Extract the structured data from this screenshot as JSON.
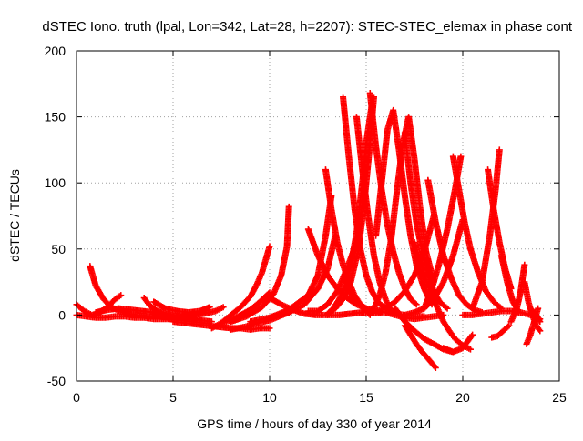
{
  "chart_data": {
    "type": "scatter",
    "title": "dSTEC Iono. truth (lpal, Lon=342, Lat=28, h=2207): STEC-STEC_elemax in phase cont",
    "xlabel": "GPS time / hours of day 330 of year 2014",
    "ylabel": "dSTEC  / TECUs",
    "xlim": [
      0,
      25
    ],
    "ylim": [
      -50,
      200
    ],
    "xticks": [
      "0",
      "5",
      "10",
      "15",
      "20",
      "25"
    ],
    "yticks": [
      "-50",
      "0",
      "50",
      "100",
      "150",
      "200"
    ],
    "grid": true,
    "grid_style": "dotted",
    "marker": "plus",
    "color": "#ff0000",
    "series": [
      {
        "x": [
          0.0,
          0.4,
          0.8,
          1.2,
          1.6,
          2.0,
          2.3
        ],
        "y": [
          8,
          3,
          0,
          2,
          6,
          12,
          15
        ]
      },
      {
        "x": [
          0.0,
          0.5,
          1.0,
          1.5,
          2.0,
          2.5,
          3.0,
          3.5,
          4.0,
          4.5,
          5.0
        ],
        "y": [
          0,
          -1,
          -2,
          -2,
          -1,
          -1,
          -2,
          -2,
          -3,
          -3,
          -3
        ]
      },
      {
        "x": [
          0.7,
          1.0,
          1.4,
          1.8,
          2.2,
          2.7,
          3.2,
          3.7,
          4.2,
          4.7,
          5.2,
          5.7,
          6.2
        ],
        "y": [
          37,
          22,
          12,
          6,
          3,
          1,
          0,
          -1,
          -1,
          -2,
          -2,
          -2,
          -3
        ]
      },
      {
        "x": [
          1.0,
          1.6,
          2.2,
          2.8,
          3.4,
          4.0,
          4.6,
          5.2,
          5.8,
          6.4,
          7.0
        ],
        "y": [
          2,
          4,
          5,
          4,
          3,
          2,
          0,
          -2,
          -3,
          -4,
          -5
        ]
      },
      {
        "x": [
          3.5,
          3.8,
          4.2,
          4.8,
          5.4,
          6.0,
          6.6,
          7.2,
          7.6
        ],
        "y": [
          13,
          7,
          3,
          0,
          -1,
          0,
          1,
          3,
          6
        ]
      },
      {
        "x": [
          4.0,
          4.6,
          5.2,
          5.8,
          6.4,
          6.9
        ],
        "y": [
          10,
          5,
          3,
          2,
          3,
          6
        ]
      },
      {
        "x": [
          5.0,
          5.6,
          6.2,
          6.8,
          7.4,
          8.0,
          8.5,
          9.0,
          9.5,
          10.0
        ],
        "y": [
          -5,
          -6,
          -7,
          -8,
          -9,
          -10,
          -10,
          -11,
          -10,
          -10
        ]
      },
      {
        "x": [
          7.0,
          7.5,
          8.0,
          8.5,
          9.0,
          9.3,
          9.6,
          9.8,
          10.0
        ],
        "y": [
          -10,
          -6,
          0,
          6,
          14,
          22,
          32,
          42,
          52
        ]
      },
      {
        "x": [
          7.5,
          8.0,
          8.5,
          9.0,
          9.5,
          10.0
        ],
        "y": [
          -6,
          -4,
          0,
          4,
          10,
          17
        ]
      },
      {
        "x": [
          8.0,
          8.8,
          9.6,
          10.2,
          10.6,
          10.9,
          11.0
        ],
        "y": [
          -5,
          -1,
          6,
          16,
          30,
          52,
          82
        ]
      },
      {
        "x": [
          8.0,
          8.7,
          9.4,
          10.0,
          10.5,
          11.0
        ],
        "y": [
          -11,
          -9,
          -6,
          -4,
          -1,
          2
        ]
      },
      {
        "x": [
          9.0,
          10.0,
          11.0,
          12.0,
          12.5,
          12.9,
          13.2
        ],
        "y": [
          -5,
          -2,
          4,
          15,
          30,
          60,
          90
        ]
      },
      {
        "x": [
          10.0,
          10.6,
          11.2,
          11.8,
          12.4,
          13.0,
          13.6,
          14.2,
          14.8,
          15.4,
          15.8
        ],
        "y": [
          13,
          8,
          4,
          1,
          0,
          0,
          0,
          1,
          2,
          2,
          2
        ]
      },
      {
        "x": [
          10.0,
          11.0,
          11.8,
          12.5,
          13.0,
          13.4
        ],
        "y": [
          -2,
          2,
          8,
          20,
          35,
          60
        ]
      },
      {
        "x": [
          12.0,
          12.5,
          13.0,
          13.5,
          14.0,
          14.5,
          15.0,
          15.5,
          16.0,
          16.5,
          17.0,
          17.5,
          18.0
        ],
        "y": [
          65,
          45,
          30,
          20,
          13,
          8,
          5,
          3,
          2,
          1,
          0,
          -1,
          -1
        ]
      },
      {
        "x": [
          12.0,
          12.5,
          13.0,
          13.5,
          14.0,
          14.5
        ],
        "y": [
          3,
          3,
          8,
          18,
          35,
          55
        ]
      },
      {
        "x": [
          12.9,
          13.2,
          13.5,
          13.8,
          14.1,
          14.4,
          14.7,
          15.0,
          15.2
        ],
        "y": [
          110,
          80,
          55,
          38,
          25,
          15,
          8,
          3,
          0
        ]
      },
      {
        "x": [
          13.0,
          13.3,
          13.6,
          13.9,
          14.2,
          14.5,
          14.8,
          15.0,
          15.3
        ],
        "y": [
          1,
          5,
          12,
          22,
          38,
          62,
          100,
          130,
          160
        ]
      },
      {
        "x": [
          13.0,
          13.4,
          13.8,
          14.2,
          14.6,
          14.9,
          15.2,
          15.4
        ],
        "y": [
          0,
          5,
          12,
          25,
          50,
          85,
          130,
          165
        ]
      },
      {
        "x": [
          13.8,
          14.1,
          14.4,
          14.7,
          15.0,
          15.3,
          15.6,
          16.0,
          16.4
        ],
        "y": [
          165,
          120,
          80,
          50,
          30,
          18,
          10,
          5,
          3
        ]
      },
      {
        "x": [
          14.5,
          14.8,
          15.1,
          15.4,
          15.7,
          16.0,
          16.2
        ],
        "y": [
          150,
          110,
          75,
          45,
          25,
          12,
          5
        ]
      },
      {
        "x": [
          14.0,
          14.5,
          15.0,
          15.5,
          16.0,
          16.5,
          17.0,
          17.5,
          18.0,
          18.5
        ],
        "y": [
          20,
          10,
          5,
          3,
          5,
          10,
          18,
          30,
          48,
          75
        ]
      },
      {
        "x": [
          15.2,
          15.5,
          15.8,
          16.1,
          16.4,
          16.7,
          17.0,
          17.3,
          17.6
        ],
        "y": [
          168,
          128,
          95,
          68,
          48,
          32,
          20,
          12,
          8
        ]
      },
      {
        "x": [
          15.4,
          15.7,
          16.0,
          16.3,
          16.6,
          16.9,
          17.2,
          17.5,
          17.8,
          18.1,
          18.5
        ],
        "y": [
          5,
          15,
          32,
          58,
          95,
          130,
          150,
          118,
          80,
          48,
          25
        ]
      },
      {
        "x": [
          15.5,
          15.8,
          16.1,
          16.4,
          16.7,
          17.0,
          17.3,
          17.6,
          18.0,
          18.4
        ],
        "y": [
          60,
          100,
          140,
          155,
          125,
          90,
          60,
          38,
          20,
          8
        ]
      },
      {
        "x": [
          16.0,
          16.5,
          17.0,
          17.5,
          18.0,
          18.5,
          19.0
        ],
        "y": [
          2,
          0,
          -2,
          -3,
          -2,
          -1,
          0
        ]
      },
      {
        "x": [
          17.0,
          17.3,
          17.6,
          17.9,
          18.2,
          18.5,
          18.8,
          19.2
        ],
        "y": [
          138,
          100,
          70,
          48,
          30,
          18,
          10,
          5
        ]
      },
      {
        "x": [
          17.0,
          17.3,
          17.6,
          17.9,
          18.2,
          18.6
        ],
        "y": [
          -8,
          -15,
          -22,
          -28,
          -33,
          -40
        ]
      },
      {
        "x": [
          16.5,
          17.0,
          17.5,
          18.0,
          18.5,
          19.0,
          19.5
        ],
        "y": [
          5,
          -5,
          -12,
          -18,
          -22,
          -26,
          -28
        ]
      },
      {
        "x": [
          17.5,
          18.0,
          18.4,
          18.7,
          19.0,
          19.3,
          19.6,
          20.0,
          20.4
        ],
        "y": [
          55,
          30,
          15,
          5,
          -5,
          -12,
          -18,
          -23,
          -26
        ]
      },
      {
        "x": [
          18.2,
          18.6,
          19.0,
          19.4,
          19.8,
          20.2,
          20.6,
          21.0
        ],
        "y": [
          102,
          70,
          45,
          28,
          15,
          8,
          4,
          2
        ]
      },
      {
        "x": [
          17.0,
          17.5,
          18.0,
          18.5,
          19.0,
          19.5,
          20.0
        ],
        "y": [
          0,
          2,
          5,
          12,
          25,
          45,
          72
        ]
      },
      {
        "x": [
          18.0,
          18.4,
          18.8,
          19.2,
          19.6,
          19.9
        ],
        "y": [
          5,
          20,
          40,
          65,
          95,
          120
        ]
      },
      {
        "x": [
          19.5,
          19.8,
          20.1,
          20.4,
          20.8,
          21.2,
          21.6,
          22.0
        ],
        "y": [
          120,
          95,
          70,
          50,
          32,
          18,
          10,
          5
        ]
      },
      {
        "x": [
          19.0,
          19.5,
          20.0,
          20.5
        ],
        "y": [
          -25,
          -28,
          -25,
          -15
        ]
      },
      {
        "x": [
          20.5,
          21.0,
          21.4,
          21.7,
          21.9
        ],
        "y": [
          5,
          25,
          60,
          95,
          125
        ]
      },
      {
        "x": [
          21.3,
          21.6,
          21.9,
          22.2,
          22.5
        ],
        "y": [
          110,
          80,
          55,
          35,
          20
        ]
      },
      {
        "x": [
          21.5,
          21.8,
          22.1,
          22.4
        ],
        "y": [
          -17,
          -16,
          -12,
          -8
        ]
      },
      {
        "x": [
          22.0,
          22.3,
          22.6,
          22.9
        ],
        "y": [
          45,
          25,
          10,
          2
        ]
      },
      {
        "x": [
          22.5,
          22.8,
          23.0,
          23.2
        ],
        "y": [
          -5,
          5,
          18,
          38
        ]
      },
      {
        "x": [
          23.2,
          23.4,
          23.6,
          23.8,
          24.0
        ],
        "y": [
          25,
          10,
          0,
          -8,
          -12
        ]
      },
      {
        "x": [
          23.3,
          23.5,
          23.7,
          23.9
        ],
        "y": [
          -22,
          -15,
          -5,
          5
        ]
      },
      {
        "x": [
          23.5,
          23.8,
          24.0
        ],
        "y": [
          5,
          0,
          -5
        ]
      },
      {
        "x": [
          20.0,
          20.5,
          21.0,
          21.5,
          22.0,
          22.5,
          23.0,
          23.5,
          24.0
        ],
        "y": [
          0,
          0,
          1,
          2,
          3,
          3,
          2,
          0,
          -3
        ]
      }
    ]
  }
}
